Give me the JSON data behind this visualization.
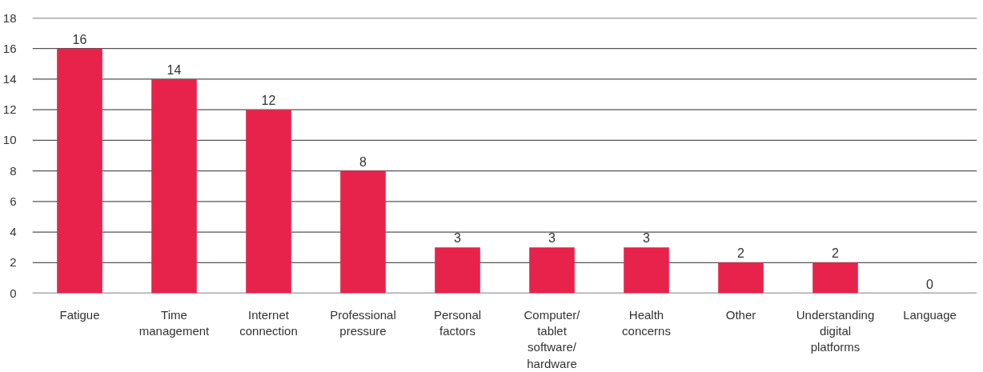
{
  "chart_data": {
    "type": "bar",
    "categories": [
      "Fatigue",
      "Time management",
      "Internet connection",
      "Professional pressure",
      "Personal factors",
      "Computer/ tablet software/ hardware",
      "Health concerns",
      "Other",
      "Understanding digital platforms",
      "Language"
    ],
    "values": [
      16,
      14,
      12,
      8,
      3,
      3,
      3,
      2,
      2,
      0
    ],
    "color": "#e8234b",
    "ylim": [
      0,
      18
    ],
    "yticks": [
      0,
      2,
      4,
      6,
      8,
      10,
      12,
      14,
      16,
      18
    ],
    "grid": "y",
    "data_labels": true
  }
}
